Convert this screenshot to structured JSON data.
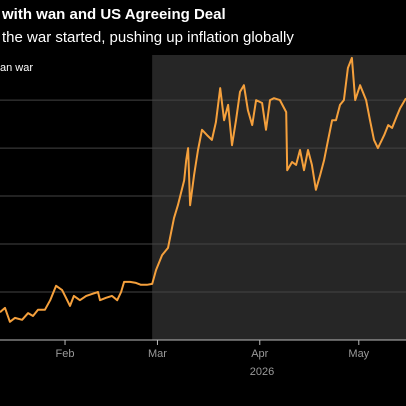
{
  "chart_data": {
    "type": "line",
    "title": "with wan and US Agreeing Deal",
    "subtitle": "the war started, pushing up inflation globally",
    "shade_label": "an war",
    "shade_start": 57.4,
    "x_axis_label": "2026",
    "x": [
      11.3,
      12.8,
      14.3,
      15.8,
      18.0,
      19.8,
      21.3,
      22.8,
      24.9,
      26.5,
      28.3,
      30.1,
      31.3,
      32.5,
      33.7,
      35.5,
      37.4,
      39.2,
      41.0,
      41.6,
      43.4,
      45.2,
      46.8,
      48.0,
      48.9,
      50.7,
      52.5,
      54.0,
      55.8,
      57.4,
      58.6,
      60.4,
      62.2,
      64.0,
      65.2,
      67.1,
      67.7,
      68.3,
      68.9,
      70.1,
      71.3,
      72.5,
      74.0,
      75.5,
      76.7,
      78.0,
      79.2,
      80.4,
      81.6,
      82.8,
      84.0,
      85.2,
      86.4,
      87.7,
      88.9,
      90.7,
      91.9,
      93.1,
      94.3,
      96.1,
      98.0,
      98.3,
      99.8,
      101.0,
      102.2,
      103.4,
      104.6,
      105.8,
      107.0,
      108.3,
      109.5,
      110.7,
      111.9,
      113.1,
      114.3,
      115.5,
      116.7,
      117.9,
      118.9,
      120.4,
      122.2,
      123.4,
      124.6,
      125.8,
      127.7,
      128.9,
      130.1,
      131.3,
      132.5,
      134.3
    ],
    "series": [
      {
        "color": "#f5a03c",
        "values": [
          5.8,
          6.7,
          3.8,
          4.6,
          4.2,
          5.6,
          5.0,
          6.3,
          6.3,
          8.3,
          11.3,
          10.4,
          8.8,
          7.1,
          9.2,
          8.3,
          9.2,
          9.6,
          10.0,
          8.3,
          8.8,
          9.2,
          8.3,
          10.0,
          12.1,
          12.1,
          11.9,
          11.5,
          11.5,
          11.7,
          14.6,
          17.7,
          19.2,
          25.4,
          28.1,
          33.3,
          37.5,
          40.0,
          28.1,
          34.4,
          39.6,
          43.8,
          42.7,
          41.7,
          45.4,
          52.5,
          45.8,
          49.0,
          40.6,
          45.8,
          51.7,
          53.1,
          47.9,
          44.8,
          50.0,
          49.4,
          43.8,
          50.0,
          50.4,
          50.0,
          47.5,
          35.4,
          37.1,
          36.5,
          39.6,
          35.4,
          39.6,
          36.5,
          31.3,
          34.4,
          37.5,
          41.7,
          45.8,
          45.8,
          49.0,
          50.0,
          56.7,
          58.8,
          50.0,
          53.1,
          50.0,
          45.8,
          41.7,
          40.0,
          42.7,
          44.8,
          44.2,
          46.3,
          48.3,
          50.4
        ]
      }
    ],
    "xlim": [
      11.3,
      134.3
    ],
    "xticks": [
      {
        "value": 31,
        "label": "Feb"
      },
      {
        "value": 59,
        "label": "Mar"
      },
      {
        "value": 90,
        "label": "Apr"
      },
      {
        "value": 120,
        "label": "May"
      }
    ],
    "ylim": [
      0,
      59.4
    ],
    "yticks": [
      10,
      20,
      30,
      40,
      50
    ],
    "grid": true,
    "shade_color": "#262626",
    "grid_color": "#444444"
  }
}
